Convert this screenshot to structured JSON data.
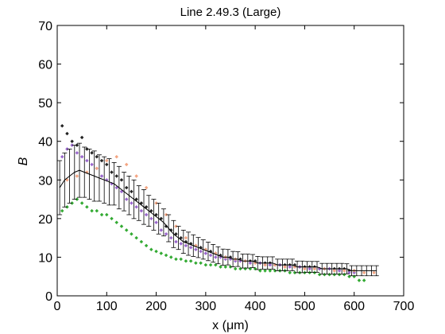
{
  "chart_data": {
    "type": "scatter",
    "title": "Line 2.49.3 (Large)",
    "xlabel": "x (μm)",
    "ylabel": "B",
    "xlim": [
      0,
      700
    ],
    "ylim": [
      0,
      70
    ],
    "xticks": [
      0,
      100,
      200,
      300,
      400,
      500,
      600,
      700
    ],
    "yticks": [
      0,
      10,
      20,
      30,
      40,
      50,
      60,
      70
    ],
    "grid": false,
    "legend": "none",
    "colors": {
      "series_black": "#222222",
      "series_purple": "#9966cc",
      "series_salmon": "#f4a582",
      "series_green": "#33aa33",
      "mean_line": "#000000"
    },
    "series": [
      {
        "color_key": "series_black",
        "x": [
          10,
          20,
          30,
          40,
          50,
          60,
          70,
          80,
          90,
          100,
          110,
          120,
          130,
          140,
          150,
          160,
          170,
          180,
          190,
          200,
          210,
          220,
          230,
          240,
          250,
          260,
          270,
          280,
          290,
          300,
          310,
          320,
          330,
          340,
          350,
          360,
          370,
          380,
          390,
          400,
          410,
          420,
          430,
          440,
          450,
          460,
          470,
          480,
          490,
          500,
          510,
          520,
          530,
          540,
          550,
          560,
          570,
          580,
          590,
          600
        ],
        "y": [
          44,
          42,
          40,
          39,
          41,
          38,
          37,
          36,
          35,
          34,
          32,
          31,
          30,
          28,
          27,
          25,
          24,
          23,
          22,
          21,
          20,
          18,
          17,
          16,
          15,
          14,
          13.5,
          13,
          12.5,
          12,
          11.5,
          11,
          10.5,
          10,
          10,
          9.5,
          9.5,
          9,
          9,
          9,
          8.5,
          8.5,
          8.5,
          8,
          8,
          8,
          8,
          8,
          7.5,
          7.5,
          7.5,
          7.5,
          7,
          7,
          7,
          7,
          7,
          7,
          6.5,
          6.5
        ]
      },
      {
        "color_key": "series_purple",
        "x": [
          10,
          20,
          30,
          40,
          50,
          60,
          70,
          80,
          90,
          100,
          110,
          120,
          130,
          140,
          150,
          160,
          170,
          180,
          190,
          200,
          210,
          220,
          230,
          240,
          250,
          260,
          270,
          280,
          290,
          300,
          310,
          320,
          330,
          340,
          350,
          360,
          370,
          380,
          390,
          400,
          410,
          420,
          430,
          440,
          450,
          460,
          470,
          480,
          490,
          500,
          510,
          520,
          530,
          540,
          550,
          560,
          570,
          580,
          590,
          600
        ],
        "y": [
          36,
          38,
          39,
          37,
          36,
          35,
          34,
          33,
          31,
          30,
          29,
          28,
          27,
          25,
          24,
          23,
          22,
          21,
          20,
          19,
          17,
          16,
          15,
          14,
          13.5,
          13,
          12.5,
          12,
          11.5,
          11,
          10.5,
          10,
          10,
          9.5,
          9.5,
          9,
          9,
          9,
          8.5,
          8.5,
          8.5,
          8,
          8,
          8,
          8,
          7.5,
          7.5,
          7.5,
          7.5,
          7,
          7,
          7,
          7,
          7,
          7,
          6.5,
          6.5,
          6.5,
          6,
          6
        ]
      },
      {
        "color_key": "series_salmon",
        "x": [
          20,
          40,
          60,
          80,
          100,
          120,
          140,
          160,
          180,
          200,
          220,
          240,
          260,
          280,
          300,
          320,
          340,
          360,
          380,
          400,
          420,
          440,
          460,
          480,
          500,
          520,
          540,
          560,
          580,
          600,
          620,
          640
        ],
        "y": [
          30,
          31,
          32,
          33,
          35,
          36,
          34,
          31,
          28,
          24,
          21,
          18,
          15,
          13,
          12,
          11,
          10,
          9.5,
          9,
          8.5,
          8,
          8,
          7.5,
          7.5,
          7,
          7,
          7,
          6.5,
          6.5,
          6.5,
          6,
          6
        ]
      },
      {
        "color_key": "series_green",
        "x": [
          10,
          20,
          30,
          40,
          50,
          60,
          70,
          80,
          90,
          100,
          110,
          120,
          130,
          140,
          150,
          160,
          170,
          180,
          190,
          200,
          210,
          220,
          230,
          240,
          250,
          260,
          270,
          280,
          290,
          300,
          310,
          320,
          330,
          340,
          350,
          360,
          370,
          380,
          390,
          400,
          410,
          420,
          430,
          440,
          450,
          460,
          470,
          480,
          490,
          500,
          510,
          520,
          530,
          540,
          550,
          560,
          570,
          580,
          590,
          600,
          610,
          620
        ],
        "y": [
          22,
          23,
          24,
          25,
          24,
          23,
          22,
          22,
          21,
          21,
          20,
          19,
          18,
          17,
          16,
          15,
          14,
          13,
          12,
          11.5,
          11,
          10.5,
          10,
          9.5,
          9.5,
          9,
          9,
          8.5,
          8.5,
          8,
          8,
          8,
          7.5,
          7.5,
          7.5,
          7,
          7,
          7,
          7,
          7,
          6.5,
          6.5,
          6.5,
          6.5,
          6.5,
          6.5,
          6,
          6,
          6,
          6,
          6,
          6,
          5.5,
          5.5,
          5.5,
          5.5,
          5.5,
          5.5,
          5,
          5,
          4,
          4
        ]
      }
    ],
    "mean_line": {
      "x": [
        5,
        15,
        25,
        35,
        45,
        55,
        65,
        75,
        85,
        95,
        105,
        115,
        125,
        135,
        145,
        155,
        165,
        175,
        185,
        195,
        205,
        215,
        225,
        235,
        245,
        255,
        265,
        275,
        285,
        295,
        305,
        315,
        325,
        335,
        345,
        355,
        365,
        375,
        385,
        395,
        405,
        415,
        425,
        435,
        445,
        455,
        465,
        475,
        485,
        495,
        505,
        515,
        525,
        535,
        545,
        555,
        565,
        575,
        585,
        595,
        605,
        615,
        625,
        635,
        645
      ],
      "y": [
        28,
        30,
        31,
        32,
        32.5,
        32,
        31.5,
        31,
        30.5,
        30,
        29.5,
        29,
        28,
        27,
        26,
        25,
        24,
        23,
        22,
        21,
        20,
        19,
        17.5,
        16,
        15,
        14,
        13.5,
        13,
        12.5,
        12,
        11.5,
        11,
        10.5,
        10,
        10,
        9.5,
        9.5,
        9,
        9,
        9,
        8.5,
        8.5,
        8.5,
        8.5,
        8,
        8,
        8,
        8,
        7.5,
        7.5,
        7.5,
        7.5,
        7.5,
        7,
        7,
        7,
        7,
        7,
        7,
        6.5,
        6.5,
        6.5,
        6.5,
        6.5,
        6.5
      ],
      "err": [
        7,
        7,
        7,
        7,
        7,
        6.5,
        6.5,
        6.5,
        6,
        6,
        6,
        5.5,
        5.5,
        5,
        5,
        5,
        4.5,
        4.5,
        4,
        4,
        4,
        3.5,
        3.5,
        3.5,
        3,
        3,
        3,
        2.8,
        2.6,
        2.5,
        2.4,
        2.3,
        2.2,
        2.1,
        2,
        2,
        1.9,
        1.8,
        1.8,
        1.7,
        1.7,
        1.6,
        1.6,
        1.6,
        1.5,
        1.5,
        1.5,
        1.5,
        1.5,
        1.5,
        1.4,
        1.4,
        1.4,
        1.4,
        1.4,
        1.4,
        1.4,
        1.4,
        1.3,
        1.3,
        1.3,
        1.3,
        1.3,
        1.3,
        1.3
      ]
    }
  }
}
